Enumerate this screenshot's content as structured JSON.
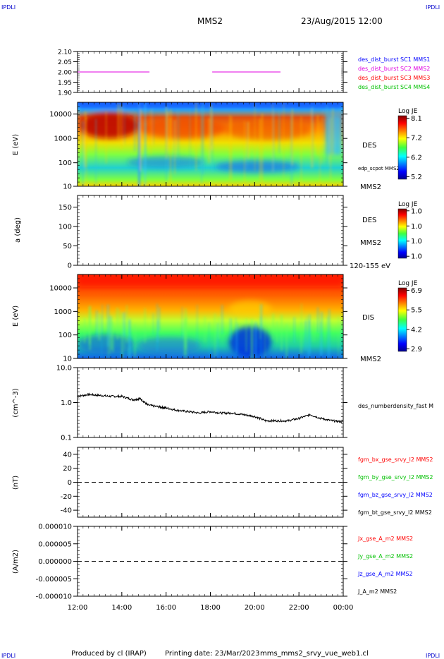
{
  "header": {
    "corner_tl": "IPDLI",
    "corner_tr": "IPDLI",
    "corner_bl": "IPDLI",
    "corner_br": "IPDLI",
    "title": "MMS2",
    "datetime": "23/Aug/2015 12:00"
  },
  "footer": {
    "produced": "Produced by cl (IRAP)",
    "printing": "Printing date: 23/Mar/2023",
    "file": "mms_mms2_srvy_vue_web1.cl"
  },
  "colors": {
    "blue": "#0000ff",
    "magenta": "#e000e0",
    "red": "#ff0000",
    "green": "#00c000",
    "black": "#000000"
  },
  "chart_data": [
    {
      "type": "line",
      "panel": "burst",
      "yticks": [
        "2.10",
        "2.05",
        "2.00",
        "1.95",
        "1.90"
      ],
      "ylim": [
        1.9,
        2.1
      ],
      "legend": [
        {
          "name": "des_dist_burst SC1 MMS1",
          "color": "#0000ff"
        },
        {
          "name": "des_dist_burst SC2 MMS2",
          "color": "#e000e0"
        },
        {
          "name": "des_dist_burst SC3 MMS3",
          "color": "#ff0000"
        },
        {
          "name": "des_dist_burst SC4 MMS4",
          "color": "#00c000"
        }
      ],
      "segments": [
        {
          "x": [
            "12:00",
            "15:15"
          ],
          "y": 2.0
        },
        {
          "x": [
            "18:05",
            "21:10"
          ],
          "y": 2.0
        }
      ]
    },
    {
      "type": "heatmap",
      "panel": "des-energy",
      "ylabel": "E (eV)",
      "yticks": [
        "10000",
        "1000",
        "100",
        "10"
      ],
      "right_label": "DES",
      "right_note": "edp_scpot MMS2",
      "bottom_right": "MMS2",
      "colorbar": {
        "title": "Log JE",
        "ticks": [
          "8.1",
          "7.2",
          "6.2",
          "5.2"
        ]
      }
    },
    {
      "type": "heatmap",
      "panel": "des-pitch",
      "ylabel": "a (deg)",
      "yticks": [
        "150",
        "100",
        "50",
        "0"
      ],
      "ylim": [
        0,
        180
      ],
      "right_label": "DES",
      "right_sub": "MMS2",
      "bottom_right": "120-155 eV",
      "colorbar": {
        "title": "Log JE",
        "ticks": [
          "1.0",
          "1.0",
          "1.0",
          "1.0"
        ]
      }
    },
    {
      "type": "heatmap",
      "panel": "dis-energy",
      "ylabel": "E (eV)",
      "yticks": [
        "10000",
        "1000",
        "100",
        "10"
      ],
      "right_label": "DIS",
      "bottom_right": "MMS2",
      "colorbar": {
        "title": "Log JE",
        "ticks": [
          "6.9",
          "5.5",
          "4.2",
          "2.9"
        ]
      }
    },
    {
      "type": "line",
      "panel": "density",
      "ylabel": "(cm^-3)",
      "yticks": [
        "10.0",
        "1.0",
        "0.1"
      ],
      "ylim": [
        0.1,
        10
      ],
      "scale": "log",
      "series": [
        {
          "name": "des_numberdensity_fast M",
          "x": [
            "12:00",
            "12:30",
            "13:00",
            "13:30",
            "14:00",
            "14:30",
            "14:50",
            "15:10",
            "15:40",
            "16:00",
            "16:30",
            "17:00",
            "17:30",
            "18:00",
            "18:30",
            "19:00",
            "19:30",
            "20:00",
            "20:30",
            "21:00",
            "21:30",
            "22:00",
            "22:30",
            "23:00",
            "23:30",
            "00:00"
          ],
          "values": [
            1.5,
            1.7,
            1.6,
            1.5,
            1.5,
            1.2,
            1.3,
            0.85,
            0.75,
            0.7,
            0.6,
            0.55,
            0.5,
            0.55,
            0.5,
            0.5,
            0.45,
            0.4,
            0.3,
            0.3,
            0.3,
            0.35,
            0.45,
            0.35,
            0.3,
            0.28
          ]
        }
      ]
    },
    {
      "type": "line",
      "panel": "magnetic-field",
      "ylabel": "(nT)",
      "yticks": [
        "40",
        "20",
        "0",
        "-20",
        "-40"
      ],
      "ylim": [
        -50,
        50
      ],
      "legend": [
        {
          "name": "fgm_bx_gse_srvy_l2 MMS2",
          "color": "#ff0000"
        },
        {
          "name": "fgm_by_gse_srvy_l2 MMS2",
          "color": "#00c000"
        },
        {
          "name": "fgm_bz_gse_srvy_l2 MMS2",
          "color": "#0000ff"
        },
        {
          "name": "fgm_bt_gse_srvy_l2 MMS2",
          "color": "#000000"
        }
      ],
      "zero_line": 0
    },
    {
      "type": "line",
      "panel": "current",
      "ylabel": "(A/m2)",
      "yticks": [
        "0.000010",
        "0.000005",
        "0.000000",
        "-0.000005",
        "-0.000010"
      ],
      "ylim": [
        -1e-05,
        1e-05
      ],
      "legend": [
        {
          "name": "Jx_gse_A_m2 MMS2",
          "color": "#ff0000"
        },
        {
          "name": "Jy_gse_A_m2 MMS2",
          "color": "#00c000"
        },
        {
          "name": "Jz_gse_A_m2 MMS2",
          "color": "#0000ff"
        },
        {
          "name": "J_A_m2 MMS2",
          "color": "#000000"
        }
      ],
      "zero_line": 0
    }
  ],
  "xaxis": {
    "ticks": [
      "12:00",
      "14:00",
      "16:00",
      "18:00",
      "20:00",
      "22:00",
      "00:00"
    ]
  }
}
